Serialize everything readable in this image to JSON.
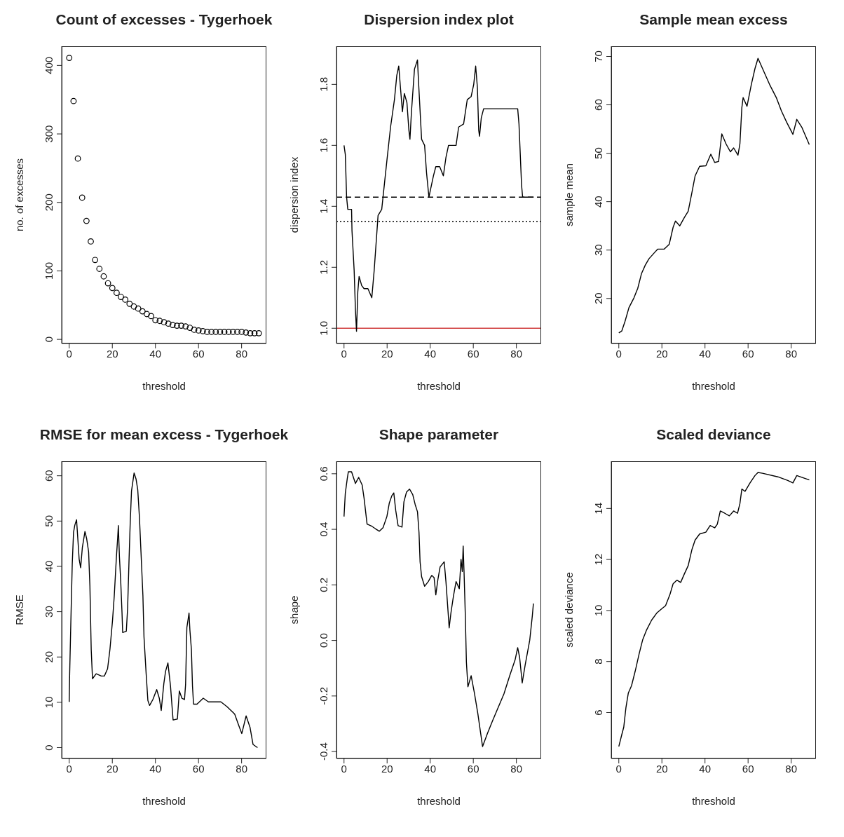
{
  "chart_data": [
    {
      "type": "scatter",
      "title": "Count of excesses - Tygerhoek",
      "xlabel": "threshold",
      "ylabel": "no. of excesses",
      "marker": "circle",
      "color": "#000000",
      "x": [
        0,
        2,
        4,
        6,
        8,
        10,
        12,
        14,
        16,
        18,
        20,
        22,
        24,
        26,
        28,
        30,
        32,
        34,
        36,
        38,
        40,
        42,
        44,
        46,
        48,
        50,
        52,
        54,
        56,
        58,
        60,
        62,
        64,
        66,
        68,
        70,
        72,
        74,
        76,
        78,
        80,
        82,
        84,
        86,
        88
      ],
      "values": [
        411,
        348,
        264,
        207,
        173,
        143,
        116,
        103,
        92,
        82,
        75,
        68,
        62,
        58,
        52,
        48,
        45,
        41,
        37,
        34,
        28,
        27,
        25,
        23,
        21,
        20,
        20,
        19,
        17,
        14,
        13,
        12,
        11,
        11,
        11,
        11,
        11,
        11,
        11,
        11,
        11,
        10,
        9,
        9,
        9
      ],
      "xlim": [
        -3.5,
        91.5
      ],
      "xticks": [
        0,
        20,
        40,
        60,
        80
      ],
      "ylim": [
        -6,
        428
      ],
      "yticks": [
        0,
        100,
        200,
        300,
        400
      ]
    },
    {
      "type": "line",
      "title": "Dispersion index plot",
      "xlabel": "threshold",
      "ylabel": "dispersion index",
      "color": "#000000",
      "x": [
        0,
        0.6,
        1.2,
        1.75,
        3.5,
        3.7,
        4.7,
        5.3,
        5.8,
        6.4,
        7,
        8.2,
        9.3,
        11.1,
        12.9,
        14,
        15.8,
        17.5,
        19.9,
        21.6,
        23.4,
        24.5,
        25.4,
        26.3,
        27.1,
        28,
        29.2,
        30.1,
        30.6,
        31.3,
        32.7,
        34.1,
        34.5,
        36,
        37.4,
        38.3,
        39.4,
        40.3,
        41.5,
        42.6,
        44.4,
        46.1,
        47.3,
        48.5,
        52,
        53.2,
        55.5,
        57.2,
        59,
        60.2,
        61.1,
        61.9,
        62.5,
        62.9,
        63.7,
        64.8,
        80.6,
        81.2,
        81.8,
        82.4,
        82.9,
        88
      ],
      "values": [
        1.6,
        1.57,
        1.43,
        1.39,
        1.39,
        1.32,
        1.19,
        1.06,
        0.99,
        1.12,
        1.17,
        1.14,
        1.13,
        1.13,
        1.1,
        1.19,
        1.37,
        1.39,
        1.55,
        1.66,
        1.75,
        1.83,
        1.86,
        1.78,
        1.71,
        1.77,
        1.74,
        1.65,
        1.62,
        1.71,
        1.85,
        1.88,
        1.82,
        1.62,
        1.6,
        1.51,
        1.43,
        1.46,
        1.5,
        1.53,
        1.53,
        1.5,
        1.56,
        1.6,
        1.6,
        1.66,
        1.67,
        1.75,
        1.76,
        1.8,
        1.86,
        1.79,
        1.65,
        1.63,
        1.69,
        1.72,
        1.72,
        1.67,
        1.57,
        1.47,
        1.43,
        1.43
      ],
      "ref_lines": [
        {
          "axis": "y",
          "value": 1.43,
          "line_style": "dashed",
          "color": "#000000"
        },
        {
          "axis": "y",
          "value": 1.35,
          "line_style": "dotted",
          "color": "#000000"
        },
        {
          "axis": "y",
          "value": 1.0,
          "line_style": "solid",
          "color": "#d03c3c"
        }
      ],
      "xlim": [
        -3.5,
        91.5
      ],
      "xticks": [
        0,
        20,
        40,
        60,
        80
      ],
      "ylim": [
        0.95,
        1.925
      ],
      "yticks": [
        {
          "value": 1.0,
          "label": "1.0"
        },
        {
          "value": 1.2,
          "label": "1.2"
        },
        {
          "value": 1.4,
          "label": "1.4"
        },
        {
          "value": 1.6,
          "label": "1.6"
        },
        {
          "value": 1.8,
          "label": "1.8"
        }
      ]
    },
    {
      "type": "line",
      "title": "Sample mean excess",
      "xlabel": "threshold",
      "ylabel": "sample mean",
      "color": "#000000",
      "x": [
        0,
        1.4,
        2.9,
        4.7,
        7,
        8.8,
        10.5,
        12.3,
        14,
        16.4,
        18.1,
        21.1,
        23.4,
        25.2,
        26.3,
        28.3,
        30.4,
        32.2,
        33.9,
        35.4,
        37.5,
        40.4,
        42.7,
        44.5,
        46.3,
        47.8,
        49.8,
        51.8,
        53.3,
        55.3,
        56.2,
        57.1,
        57.7,
        59.5,
        61.5,
        63.2,
        64.6,
        66.7,
        70.2,
        73.2,
        75.5,
        77.9,
        80.8,
        82.6,
        84.9,
        88.4
      ],
      "values": [
        12.9,
        13.3,
        15.3,
        18.1,
        20.1,
        22.1,
        25.1,
        26.9,
        28.2,
        29.4,
        30.2,
        30.2,
        31.2,
        34.7,
        36,
        35,
        36.7,
        38,
        41.8,
        45.3,
        47.3,
        47.4,
        49.8,
        48.1,
        48.3,
        54,
        51.9,
        50.3,
        51.1,
        49.6,
        51.9,
        59.4,
        61.5,
        59.7,
        64.2,
        67.5,
        69.6,
        67.5,
        64,
        61.4,
        58.7,
        56.4,
        53.9,
        57,
        55.4,
        51.8
      ],
      "xlim": [
        -3.5,
        91.5
      ],
      "xticks": [
        0,
        20,
        40,
        60,
        80
      ],
      "ylim": [
        10.7,
        72.1
      ],
      "yticks": [
        20,
        30,
        40,
        50,
        60,
        70
      ]
    },
    {
      "type": "line",
      "title": "RMSE for mean excess - Tygerhoek",
      "xlabel": "threshold",
      "ylabel": "RMSE",
      "color": "#000000",
      "x": [
        0,
        0.2,
        0.8,
        1.4,
        2,
        2.6,
        3.4,
        4.1,
        4.6,
        5.3,
        6.1,
        7.3,
        8.1,
        9,
        9.6,
        10.2,
        10.8,
        12.5,
        14.9,
        16.3,
        17.8,
        18.9,
        20.1,
        20.9,
        21.9,
        22.5,
        22.8,
        23.3,
        23.9,
        24.5,
        24.8,
        26.5,
        27.1,
        27.7,
        28.3,
        28.9,
        30.1,
        31,
        31.8,
        32.6,
        33.3,
        34.2,
        34.7,
        35.7,
        36.5,
        37.3,
        38.8,
        40.6,
        41.8,
        42.7,
        43.9,
        44.7,
        45.8,
        47,
        48.2,
        50.2,
        51.1,
        52.3,
        53.5,
        54,
        54.6,
        55.6,
        56,
        56.7,
        57.2,
        57.7,
        59.3,
        62.2,
        64.6,
        70.4,
        73.3,
        76.8,
        78.6,
        80.1,
        82.1,
        83.9,
        85.3,
        87.4
      ],
      "values": [
        10.1,
        16.3,
        28.7,
        40.5,
        47.5,
        49.1,
        50.3,
        45.3,
        41.6,
        39.7,
        44.2,
        47.7,
        46.1,
        43.2,
        35.6,
        21.7,
        15.2,
        16.3,
        15.8,
        15.8,
        17.4,
        21.7,
        28.1,
        33.5,
        42.1,
        46.4,
        49,
        42.1,
        36.7,
        29.7,
        25.4,
        25.7,
        30.8,
        40.5,
        49.6,
        56.6,
        60.6,
        59.3,
        56.9,
        50.7,
        43.2,
        33.5,
        24.4,
        16.3,
        10.4,
        9.3,
        10.6,
        12.8,
        10.9,
        8.2,
        14.1,
        16.8,
        18.7,
        13.6,
        6.1,
        6.3,
        12.5,
        10.9,
        10.6,
        13.9,
        26.5,
        29.7,
        26,
        21.7,
        13.6,
        9.6,
        9.6,
        10.9,
        10.1,
        10.1,
        9,
        7.4,
        5,
        3.1,
        7,
        4.5,
        0.7,
        0
      ],
      "xlim": [
        -3.5,
        91.5
      ],
      "xticks": [
        0,
        20,
        40,
        60,
        80
      ],
      "ylim": [
        -2.4,
        63.2
      ],
      "yticks": [
        0,
        10,
        20,
        30,
        40,
        50,
        60
      ]
    },
    {
      "type": "line",
      "title": "Shape parameter",
      "xlabel": "threshold",
      "ylabel": "shape",
      "color": "#000000",
      "x": [
        0,
        0.6,
        1.5,
        2,
        3.5,
        5.3,
        6.8,
        8.4,
        9.3,
        10.7,
        12.9,
        14.6,
        16.4,
        18.1,
        19.9,
        21,
        22.2,
        23.1,
        24,
        25.1,
        26.9,
        27.8,
        29,
        30.4,
        31.9,
        33,
        34.1,
        34.8,
        35.3,
        36,
        37.4,
        39.1,
        40.7,
        41.8,
        42.6,
        43.6,
        44.6,
        46.5,
        47.3,
        48.5,
        48.8,
        49.6,
        50.8,
        52,
        53.5,
        54.3,
        54.9,
        55.3,
        55.7,
        56.3,
        56.8,
        57.5,
        59,
        60.5,
        62.1,
        64.3,
        66.6,
        68.9,
        71.3,
        74.2,
        77.1,
        79.4,
        80.6,
        81.5,
        82.7,
        84.1,
        86.2,
        87.4,
        87.9
      ],
      "values": [
        0.446,
        0.53,
        0.582,
        0.607,
        0.607,
        0.565,
        0.587,
        0.56,
        0.512,
        0.419,
        0.411,
        0.402,
        0.393,
        0.406,
        0.446,
        0.494,
        0.521,
        0.531,
        0.468,
        0.413,
        0.408,
        0.499,
        0.534,
        0.545,
        0.525,
        0.49,
        0.463,
        0.389,
        0.283,
        0.23,
        0.195,
        0.212,
        0.234,
        0.226,
        0.164,
        0.221,
        0.265,
        0.283,
        0.212,
        0.08,
        0.045,
        0.098,
        0.16,
        0.212,
        0.186,
        0.292,
        0.248,
        0.34,
        0.248,
        0.089,
        -0.078,
        -0.167,
        -0.127,
        -0.189,
        -0.263,
        -0.382,
        -0.334,
        -0.29,
        -0.246,
        -0.193,
        -0.122,
        -0.07,
        -0.026,
        -0.061,
        -0.153,
        -0.087,
        0.001,
        0.089,
        0.133
      ],
      "xlim": [
        -3.5,
        91.5
      ],
      "xticks": [
        0,
        20,
        40,
        60,
        80
      ],
      "ylim": [
        -0.425,
        0.645
      ],
      "yticks": [
        {
          "value": -0.4,
          "label": "-0.4"
        },
        {
          "value": -0.2,
          "label": "-0.2"
        },
        {
          "value": 0,
          "label": "0.0"
        },
        {
          "value": 0.2,
          "label": "0.2"
        },
        {
          "value": 0.4,
          "label": "0.4"
        },
        {
          "value": 0.6,
          "label": "0.6"
        }
      ]
    },
    {
      "type": "line",
      "title": "Scaled deviance",
      "xlabel": "threshold",
      "ylabel": "scaled deviance",
      "color": "#000000",
      "x": [
        0,
        1.4,
        2.3,
        3.3,
        4.4,
        5.9,
        7.6,
        9.4,
        11.1,
        12.9,
        15.2,
        17.6,
        19.7,
        21.7,
        23.7,
        25.2,
        27,
        28.7,
        30.4,
        32.2,
        33.9,
        35.4,
        37.5,
        40.4,
        42.4,
        44.5,
        45.7,
        47.1,
        49.2,
        51.3,
        53.3,
        55.1,
        56.2,
        57.1,
        58.6,
        60.9,
        63.2,
        64.6,
        66.7,
        73.8,
        78.4,
        80.8,
        82.6,
        84.9,
        88.4
      ],
      "values": [
        4.67,
        5.14,
        5.43,
        6.19,
        6.76,
        7.05,
        7.62,
        8.29,
        8.86,
        9.24,
        9.62,
        9.9,
        10.05,
        10.19,
        10.62,
        11.05,
        11.19,
        11.1,
        11.43,
        11.76,
        12.38,
        12.76,
        13,
        13.07,
        13.33,
        13.24,
        13.38,
        13.9,
        13.81,
        13.71,
        13.9,
        13.81,
        14.19,
        14.76,
        14.67,
        15,
        15.29,
        15.41,
        15.38,
        15.24,
        15.1,
        15,
        15.29,
        15.22,
        15.12
      ],
      "xlim": [
        -3.5,
        91.5
      ],
      "xticks": [
        0,
        20,
        40,
        60,
        80
      ],
      "ylim": [
        4.2,
        15.85
      ],
      "yticks": [
        6,
        8,
        10,
        12,
        14
      ]
    }
  ]
}
